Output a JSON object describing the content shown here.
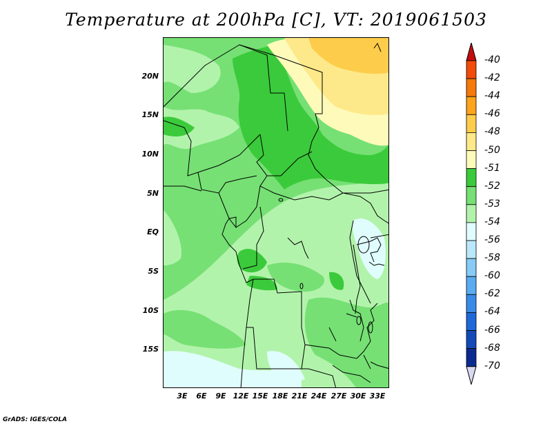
{
  "title": "Temperature at 200hPa [C], VT: 2019061503",
  "credit": "GrADS: IGES/COLA",
  "lat_labels": [
    "20N",
    "15N",
    "10N",
    "5N",
    "EQ",
    "5S",
    "10S",
    "15S"
  ],
  "lon_labels": [
    "3E",
    "6E",
    "9E",
    "12E",
    "15E",
    "18E",
    "21E",
    "24E",
    "27E",
    "30E",
    "33E"
  ],
  "colorbar": {
    "labels": [
      "-40",
      "-42",
      "-44",
      "-46",
      "-48",
      "-50",
      "-51",
      "-52",
      "-53",
      "-54",
      "-56",
      "-58",
      "-60",
      "-62",
      "-64",
      "-66",
      "-68",
      "-70"
    ],
    "colors": [
      "#e11a12",
      "#f24c0a",
      "#f6790c",
      "#fba41c",
      "#fdcc4b",
      "#fee98a",
      "#fefbba",
      "#3bca3b",
      "#76e074",
      "#b2f3ab",
      "#e0fdfd",
      "#b9e8fa",
      "#87cbf6",
      "#5aacf0",
      "#3a8be8",
      "#1f68d7",
      "#124ab8",
      "#0a2a90",
      "#050860"
    ],
    "top_arrow_color": "#c40e0e",
    "bottom_arrow_color": "#d8d8f0"
  },
  "map": {
    "fill_colors": {
      "pale_green": "#b2f3ab",
      "light_green": "#76e074",
      "green": "#3bca3b",
      "cyan": "#e0fdfd",
      "pale_yellow": "#fefbba",
      "yellow": "#fee98a",
      "gold": "#fdcc4b"
    }
  }
}
